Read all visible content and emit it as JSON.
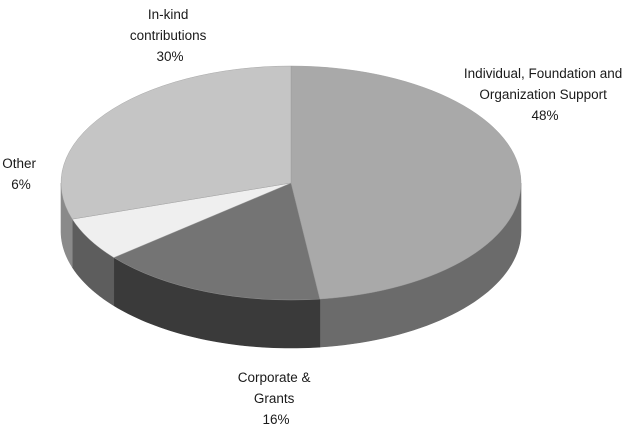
{
  "chart_data": {
    "type": "pie",
    "style": "3d",
    "slices": [
      {
        "label": "Individual, Foundation and Organization Support",
        "label_lines": [
          "Individual, Foundation and",
          "Organization Support"
        ],
        "value": 48,
        "value_text": "48%",
        "color": "#a9a9a9",
        "side_color": "#6b6b6b"
      },
      {
        "label": "Corporate & Grants",
        "label_lines": [
          "Corporate &",
          "Grants"
        ],
        "value": 16,
        "value_text": "16%",
        "color": "#747474",
        "side_color": "#3a3a3a"
      },
      {
        "label": "Other",
        "label_lines": [
          "Other"
        ],
        "value": 6,
        "value_text": "6%",
        "color": "#efefef",
        "side_color": "#5d5d5d"
      },
      {
        "label": "In-kind contributions",
        "label_lines": [
          "In-kind",
          "contributions"
        ],
        "value": 30,
        "value_text": "30%",
        "color": "#c5c5c5",
        "side_color": "#8a8a8a"
      }
    ]
  }
}
